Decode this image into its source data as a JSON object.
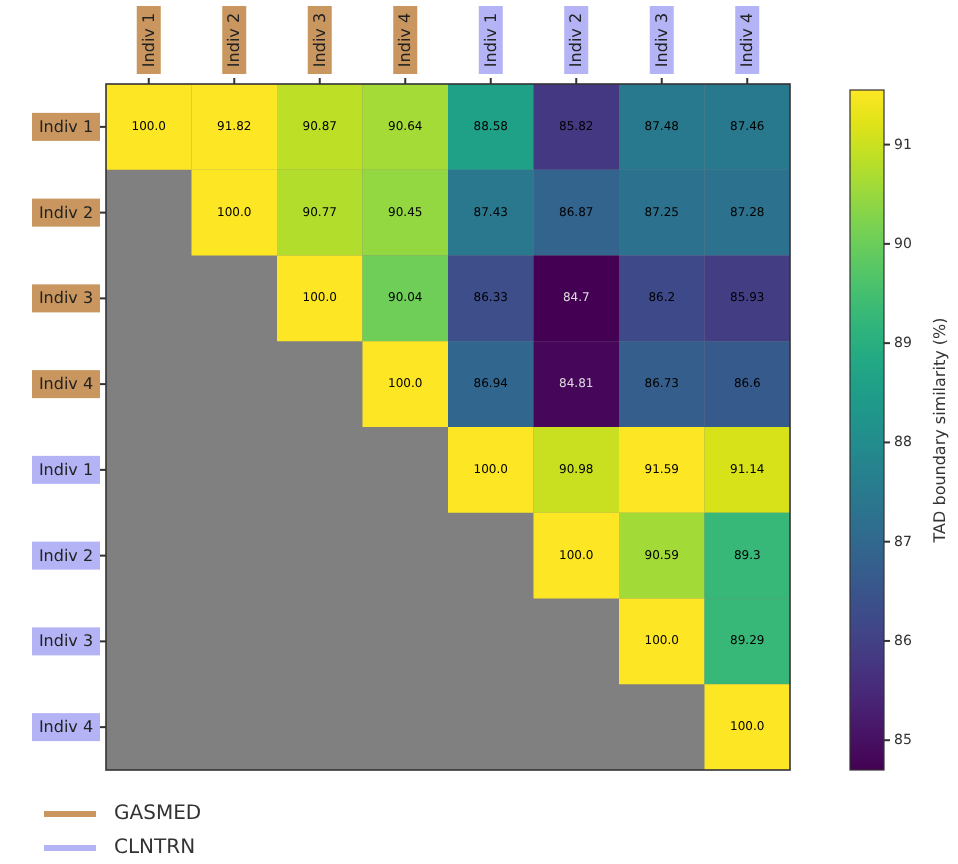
{
  "chart_data": {
    "type": "heatmap",
    "clabel": "TAD boundary similarity (%)",
    "categories": [
      "Indiv 1",
      "Indiv 2",
      "Indiv 3",
      "Indiv 4",
      "Indiv 1",
      "Indiv 2",
      "Indiv 3",
      "Indiv 4"
    ],
    "y_categories": [
      "Indiv 1",
      "Indiv 2",
      "Indiv 3",
      "Indiv 4",
      "Indiv 1",
      "Indiv 2",
      "Indiv 3",
      "Indiv 4"
    ],
    "colors": [
      "#c8965e",
      "#c8965e",
      "#c8965e",
      "#c8965e",
      "#b3b3f5",
      "#b3b3f5",
      "#b3b3f5",
      "#b3b3f5"
    ],
    "annotations": [
      "GASMED",
      "CLNTRN"
    ],
    "cells": [
      [
        100.0,
        91.82,
        90.87,
        90.64,
        88.58,
        85.82,
        87.48,
        87.46
      ],
      [
        null,
        100.0,
        90.77,
        90.45,
        87.43,
        86.87,
        87.25,
        87.28
      ],
      [
        null,
        null,
        100.0,
        90.04,
        86.33,
        84.7,
        86.2,
        85.93
      ],
      [
        null,
        null,
        null,
        100.0,
        86.94,
        84.81,
        86.73,
        86.6
      ],
      [
        null,
        null,
        null,
        null,
        100.0,
        90.98,
        91.59,
        91.14
      ],
      [
        null,
        null,
        null,
        null,
        null,
        100.0,
        90.59,
        89.3
      ],
      [
        null,
        null,
        null,
        null,
        null,
        null,
        100.0,
        89.29
      ],
      [
        null,
        null,
        null,
        null,
        null,
        null,
        null,
        100.0
      ]
    ],
    "cell_labels": [
      [
        "100.0",
        "91.82",
        "90.87",
        "90.64",
        "88.58",
        "85.82",
        "87.48",
        "87.46"
      ],
      [
        null,
        "100.0",
        "90.77",
        "90.45",
        "87.43",
        "86.87",
        "87.25",
        "87.28"
      ],
      [
        null,
        null,
        "100.0",
        "90.04",
        "86.33",
        "84.7",
        "86.2",
        "85.93"
      ],
      [
        null,
        null,
        null,
        "100.0",
        "86.94",
        "84.81",
        "86.73",
        "86.6"
      ],
      [
        null,
        null,
        null,
        null,
        "100.0",
        "90.98",
        "91.59",
        "91.14"
      ],
      [
        null,
        null,
        null,
        null,
        null,
        "100.0",
        "90.59",
        "89.3"
      ],
      [
        null,
        null,
        null,
        null,
        null,
        null,
        "100.0",
        "89.29"
      ],
      [
        null,
        null,
        null,
        null,
        null,
        null,
        null,
        "100.0"
      ]
    ],
    "clim": [
      84.7,
      91.55
    ],
    "cticks": [
      85,
      86,
      87,
      88,
      89,
      90,
      91
    ]
  }
}
